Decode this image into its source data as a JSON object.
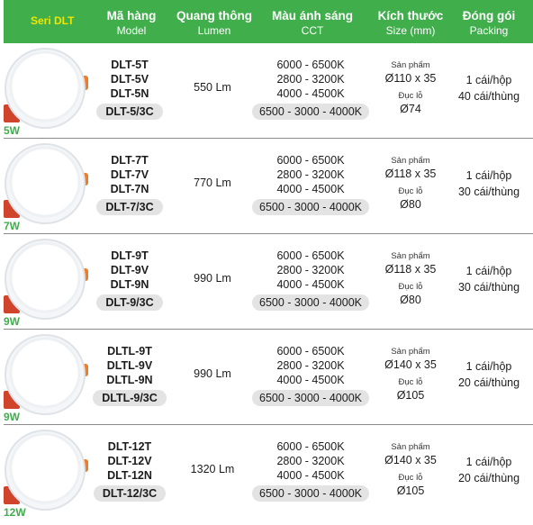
{
  "header": {
    "series": "Seri DLT",
    "columns": [
      {
        "vi": "Mã hàng",
        "en": "Model"
      },
      {
        "vi": "Quang thông",
        "en": "Lumen"
      },
      {
        "vi": "Màu ánh sáng",
        "en": "CCT"
      },
      {
        "vi": "Kích thước",
        "en": "Size (mm)"
      },
      {
        "vi": "Đóng gói",
        "en": "Packing"
      }
    ]
  },
  "rows": [
    {
      "watt": "5W",
      "models": [
        "DLT-5T",
        "DLT-5V",
        "DLT-5N"
      ],
      "model_3c": "DLT-5/3C",
      "lumen": "550 Lm",
      "cct": [
        "6000 - 6500K",
        "2800 - 3200K",
        "4000 - 4500K"
      ],
      "cct_3c": "6500 - 3000 - 4000K",
      "product_label": "Sản phẩm",
      "product_size": "Ø110 x 35",
      "hole_label": "Đục lỗ",
      "hole_size": "Ø74",
      "pack_box": "1 cái/hộp",
      "pack_carton": "40 cái/thùng"
    },
    {
      "watt": "7W",
      "models": [
        "DLT-7T",
        "DLT-7V",
        "DLT-7N"
      ],
      "model_3c": "DLT-7/3C",
      "lumen": "770 Lm",
      "cct": [
        "6000 - 6500K",
        "2800 - 3200K",
        "4000 - 4500K"
      ],
      "cct_3c": "6500 - 3000 - 4000K",
      "product_label": "Sản phẩm",
      "product_size": "Ø118 x 35",
      "hole_label": "Đục lỗ",
      "hole_size": "Ø80",
      "pack_box": "1 cái/hộp",
      "pack_carton": "30 cái/thùng"
    },
    {
      "watt": "9W",
      "models": [
        "DLT-9T",
        "DLT-9V",
        "DLT-9N"
      ],
      "model_3c": "DLT-9/3C",
      "lumen": "990 Lm",
      "cct": [
        "6000 - 6500K",
        "2800 - 3200K",
        "4000 - 4500K"
      ],
      "cct_3c": "6500 - 3000 - 4000K",
      "product_label": "Sản phẩm",
      "product_size": "Ø118 x 35",
      "hole_label": "Đục lỗ",
      "hole_size": "Ø80",
      "pack_box": "1 cái/hộp",
      "pack_carton": "30 cái/thùng"
    },
    {
      "watt": "9W",
      "models": [
        "DLTL-9T",
        "DLTL-9V",
        "DLTL-9N"
      ],
      "model_3c": "DLTL-9/3C",
      "lumen": "990 Lm",
      "cct": [
        "6000 - 6500K",
        "2800 - 3200K",
        "4000 - 4500K"
      ],
      "cct_3c": "6500 - 3000 - 4000K",
      "product_label": "Sản phẩm",
      "product_size": "Ø140 x 35",
      "hole_label": "Đục lỗ",
      "hole_size": "Ø105",
      "pack_box": "1 cái/hộp",
      "pack_carton": "20 cái/thùng"
    },
    {
      "watt": "12W",
      "models": [
        "DLT-12T",
        "DLT-12V",
        "DLT-12N"
      ],
      "model_3c": "DLT-12/3C",
      "lumen": "1320 Lm",
      "cct": [
        "6000 - 6500K",
        "2800 - 3200K",
        "4000 - 4500K"
      ],
      "cct_3c": "6500 - 3000 - 4000K",
      "product_label": "Sản phẩm",
      "product_size": "Ø140 x 35",
      "hole_label": "Đục lỗ",
      "hole_size": "Ø105",
      "pack_box": "1 cái/hộp",
      "pack_carton": "20 cái/thùng"
    }
  ],
  "colors": {
    "header_bg": "#3fae4b",
    "series_title": "#f2e600",
    "watt": "#3fae4b",
    "pill": "#e3e3e3"
  }
}
